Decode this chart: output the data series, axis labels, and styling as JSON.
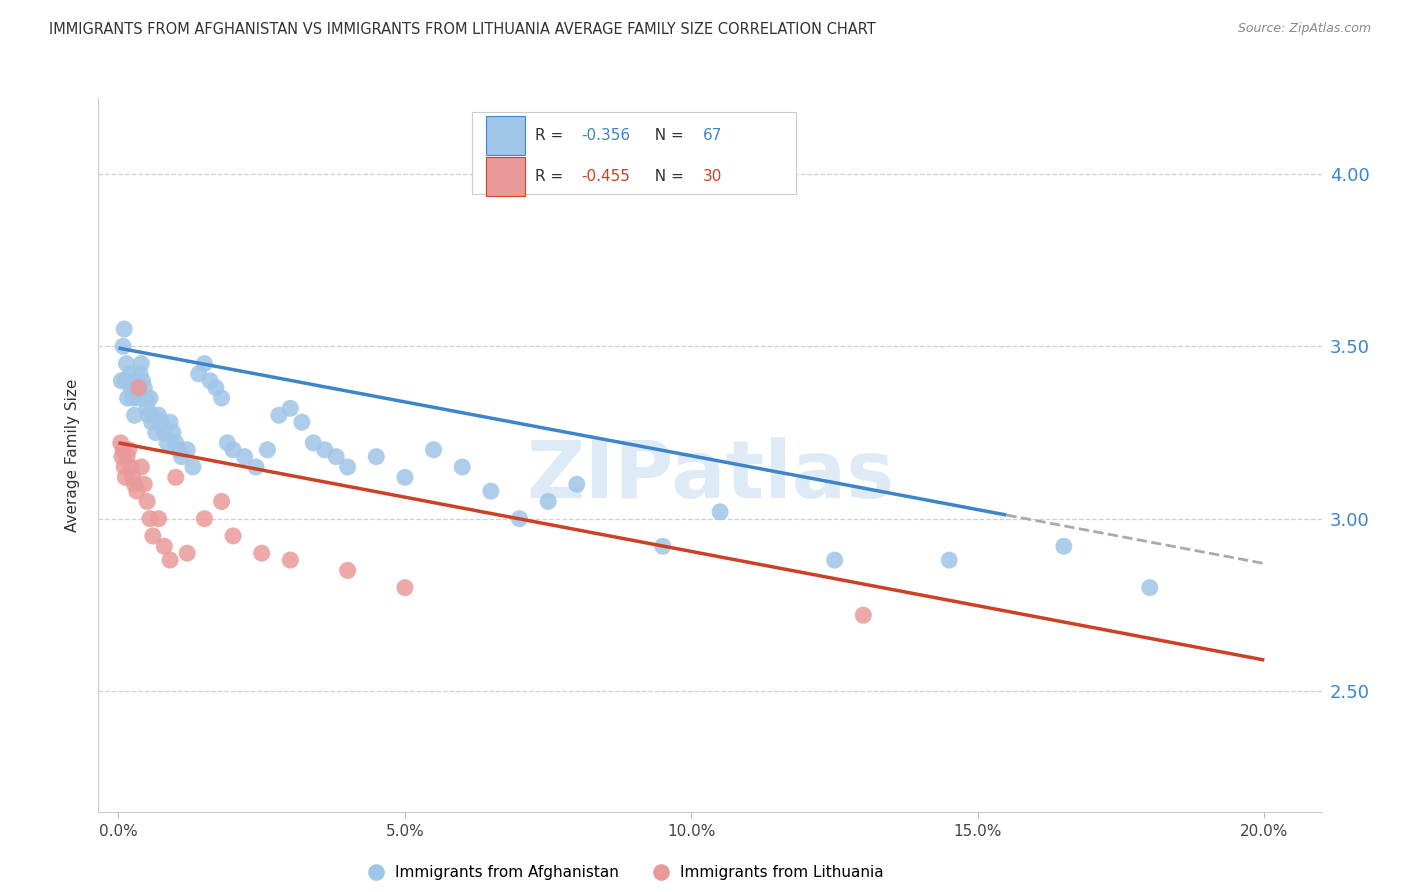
{
  "title": "IMMIGRANTS FROM AFGHANISTAN VS IMMIGRANTS FROM LITHUANIA AVERAGE FAMILY SIZE CORRELATION CHART",
  "source": "Source: ZipAtlas.com",
  "ylabel": "Average Family Size",
  "xtick_vals": [
    0.0,
    5.0,
    10.0,
    15.0,
    20.0
  ],
  "xtick_labels": [
    "0.0%",
    "5.0%",
    "10.0%",
    "15.0%",
    "20.0%"
  ],
  "ytick_vals": [
    2.5,
    3.0,
    3.5,
    4.0
  ],
  "ylim": [
    2.15,
    4.22
  ],
  "xlim": [
    -0.35,
    21.0
  ],
  "afghanistan": {
    "label": "Immigrants from Afghanistan",
    "R": -0.356,
    "N": 67,
    "dot_color": "#9fc5e8",
    "line_color": "#3d85c8",
    "x": [
      0.05,
      0.08,
      0.1,
      0.12,
      0.14,
      0.16,
      0.18,
      0.2,
      0.22,
      0.25,
      0.28,
      0.3,
      0.32,
      0.35,
      0.38,
      0.4,
      0.42,
      0.45,
      0.48,
      0.5,
      0.52,
      0.55,
      0.58,
      0.6,
      0.65,
      0.7,
      0.75,
      0.8,
      0.85,
      0.9,
      0.95,
      1.0,
      1.05,
      1.1,
      1.2,
      1.3,
      1.4,
      1.5,
      1.6,
      1.7,
      1.8,
      1.9,
      2.0,
      2.2,
      2.4,
      2.6,
      2.8,
      3.0,
      3.2,
      3.4,
      3.6,
      3.8,
      4.0,
      4.5,
      5.0,
      5.5,
      6.0,
      6.5,
      7.0,
      7.5,
      8.0,
      9.5,
      10.5,
      12.5,
      14.5,
      16.5,
      18.0
    ],
    "y": [
      3.4,
      3.5,
      3.55,
      3.4,
      3.45,
      3.35,
      3.4,
      3.42,
      3.38,
      3.35,
      3.3,
      3.4,
      3.38,
      3.35,
      3.42,
      3.45,
      3.4,
      3.38,
      3.35,
      3.32,
      3.3,
      3.35,
      3.28,
      3.3,
      3.25,
      3.3,
      3.28,
      3.25,
      3.22,
      3.28,
      3.25,
      3.22,
      3.2,
      3.18,
      3.2,
      3.15,
      3.42,
      3.45,
      3.4,
      3.38,
      3.35,
      3.22,
      3.2,
      3.18,
      3.15,
      3.2,
      3.3,
      3.32,
      3.28,
      3.22,
      3.2,
      3.18,
      3.15,
      3.18,
      3.12,
      3.2,
      3.15,
      3.08,
      3.0,
      3.05,
      3.1,
      2.92,
      3.02,
      2.88,
      2.88,
      2.92,
      2.8
    ]
  },
  "lithuania": {
    "label": "Immigrants from Lithuania",
    "R": -0.455,
    "N": 30,
    "dot_color": "#ea9999",
    "line_color": "#cc4125",
    "x": [
      0.04,
      0.06,
      0.08,
      0.1,
      0.12,
      0.15,
      0.18,
      0.22,
      0.25,
      0.28,
      0.32,
      0.35,
      0.4,
      0.45,
      0.5,
      0.55,
      0.6,
      0.7,
      0.8,
      0.9,
      1.0,
      1.2,
      1.5,
      1.8,
      2.0,
      2.5,
      3.0,
      4.0,
      5.0,
      13.0
    ],
    "y": [
      3.22,
      3.18,
      3.2,
      3.15,
      3.12,
      3.18,
      3.2,
      3.15,
      3.12,
      3.1,
      3.08,
      3.38,
      3.15,
      3.1,
      3.05,
      3.0,
      2.95,
      3.0,
      2.92,
      2.88,
      3.12,
      2.9,
      3.0,
      3.05,
      2.95,
      2.9,
      2.88,
      2.85,
      2.8,
      2.72
    ]
  },
  "trend_afghanistan": {
    "x_solid_end": 15.5,
    "x_dash_end": 20.0,
    "y_at_0": 3.495,
    "y_at_20": 2.87
  },
  "trend_lithuania": {
    "x_end": 20.0,
    "y_at_0": 3.22,
    "y_at_20": 2.59
  },
  "watermark": "ZIPatlas",
  "bg_color": "#ffffff",
  "grid_color": "#d0d0d0",
  "right_axis_color": "#3d85c8",
  "title_fontsize": 10.5,
  "source_fontsize": 9,
  "legend_box_color": "#cccccc"
}
